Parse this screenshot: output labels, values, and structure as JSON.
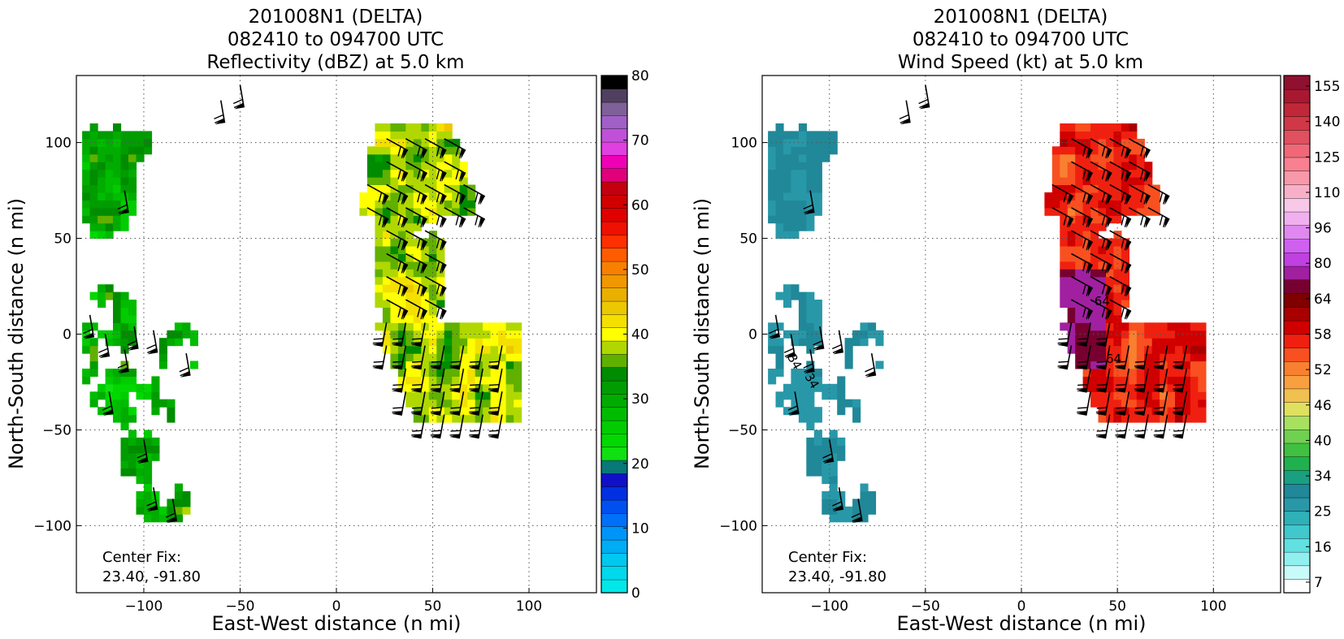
{
  "chart_data": [
    {
      "type": "heatmap",
      "title_lines": [
        "201008N1 (DELTA)",
        "082410 to 094700 UTC",
        "Reflectivity (dBZ) at 5.0 km"
      ],
      "xlabel": "East-West distance (n mi)",
      "ylabel": "North-South distance (n mi)",
      "xlim": [
        -135,
        135
      ],
      "ylim": [
        -135,
        135
      ],
      "x_ticks": [
        -100,
        -50,
        0,
        50,
        100
      ],
      "y_ticks": [
        -100,
        -50,
        0,
        50,
        100
      ],
      "x_tick_labels": [
        "−100",
        "−50",
        "0",
        "50",
        "100"
      ],
      "y_tick_labels": [
        "−100",
        "−50",
        "0",
        "50",
        "100"
      ],
      "grid": true,
      "annotation": [
        "Center Fix:",
        "23.40, -91.80"
      ],
      "colorbar": {
        "levels": 32,
        "tick_labels": [
          "0",
          "10",
          "20",
          "30",
          "40",
          "50",
          "60",
          "70",
          "80"
        ],
        "colors": [
          "#00e8e8",
          "#00d8ec",
          "#00c8f0",
          "#00acf4",
          "#0094f8",
          "#0070f8",
          "#0050f0",
          "#0030e0",
          "#1010c8",
          "#087878",
          "#10e010",
          "#00d800",
          "#00cc00",
          "#00bc00",
          "#00ac00",
          "#009c00",
          "#008c00",
          "#60b000",
          "#b0d800",
          "#ffff00",
          "#f4e000",
          "#ecc800",
          "#eab000",
          "#f09800",
          "#f88000",
          "#ff5c00",
          "#ff3000",
          "#f01000",
          "#e00000",
          "#d00000",
          "#c40010",
          "#e0007a",
          "#f000b4",
          "#e040e0",
          "#c050d8",
          "#a060c8",
          "#806098",
          "#504060",
          "#000000"
        ]
      },
      "field_description": "radar reflectivity with wind barbs"
    },
    {
      "type": "heatmap",
      "title_lines": [
        "201008N1 (DELTA)",
        "082410 to 094700 UTC",
        "Wind Speed (kt) at 5.0 km"
      ],
      "xlabel": "East-West distance (n mi)",
      "ylabel": "North-South distance (n mi)",
      "xlim": [
        -135,
        135
      ],
      "ylim": [
        -135,
        135
      ],
      "x_ticks": [
        -100,
        -50,
        0,
        50,
        100
      ],
      "y_ticks": [
        -100,
        -50,
        0,
        50,
        100
      ],
      "x_tick_labels": [
        "−100",
        "−50",
        "0",
        "50",
        "100"
      ],
      "y_tick_labels": [
        "−100",
        "−50",
        "0",
        "50",
        "100"
      ],
      "grid": true,
      "annotation": [
        "Center Fix:",
        "23.40, -91.80"
      ],
      "contour_labels": [
        "34",
        "34",
        "64",
        "64"
      ],
      "colorbar": {
        "tick_labels": [
          "7",
          "16",
          "25",
          "34",
          "40",
          "46",
          "52",
          "58",
          "64",
          "80",
          "96",
          "110",
          "125",
          "140",
          "155"
        ],
        "colors": [
          "#ffffff",
          "#c8fafa",
          "#90f0f0",
          "#60e0e0",
          "#40c8cc",
          "#30b0b8",
          "#2898a8",
          "#208898",
          "#18a080",
          "#20b050",
          "#40c040",
          "#70d050",
          "#a8e060",
          "#e0e060",
          "#f0c050",
          "#f8a040",
          "#f88030",
          "#f85020",
          "#f02010",
          "#d00000",
          "#a80000",
          "#800000",
          "#780030",
          "#a020a0",
          "#c040e0",
          "#d060f0",
          "#e088f0",
          "#f0b0f0",
          "#f8c8e8",
          "#f8b0c8",
          "#f898a8",
          "#f88090",
          "#f06878",
          "#e05060",
          "#d03848",
          "#c02838",
          "#a81830",
          "#901030"
        ]
      },
      "field_description": "wind speed with wind barbs and contours"
    }
  ]
}
